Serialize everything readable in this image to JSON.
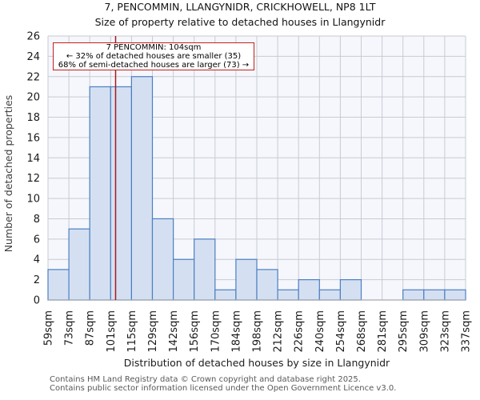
{
  "header": {
    "title": "7, PENCOMMIN, LLANGYNIDR, CRICKHOWELL, NP8 1LT",
    "subtitle": "Size of property relative to detached houses in Llangynidr"
  },
  "annotation": {
    "line1": "7 PENCOMMIN: 104sqm",
    "line2": "← 32% of detached houses are smaller (35)",
    "line3": "68% of semi-detached houses are larger (73) →"
  },
  "chart_data": {
    "type": "bar",
    "title": "7, PENCOMMIN, LLANGYNIDR, CRICKHOWELL, NP8 1LT",
    "subtitle": "Size of property relative to detached houses in Llangynidr",
    "xlabel": "Distribution of detached houses by size in Llangynidr",
    "ylabel": "Number of detached properties",
    "categories": [
      "59sqm",
      "73sqm",
      "87sqm",
      "101sqm",
      "115sqm",
      "129sqm",
      "142sqm",
      "156sqm",
      "170sqm",
      "184sqm",
      "198sqm",
      "212sqm",
      "226sqm",
      "240sqm",
      "254sqm",
      "268sqm",
      "281sqm",
      "295sqm",
      "309sqm",
      "323sqm",
      "337sqm"
    ],
    "bin_edges_sqm": [
      59,
      73,
      87,
      101,
      115,
      129,
      142,
      156,
      170,
      184,
      198,
      212,
      226,
      240,
      254,
      268,
      281,
      295,
      309,
      323,
      337
    ],
    "values": [
      3,
      7,
      21,
      21,
      22,
      8,
      4,
      6,
      1,
      4,
      3,
      1,
      2,
      1,
      2,
      0,
      0,
      1,
      1,
      1
    ],
    "ylim": [
      0,
      26
    ],
    "y_ticks": [
      0,
      2,
      4,
      6,
      8,
      10,
      12,
      14,
      16,
      18,
      20,
      22,
      24,
      26
    ],
    "grid": true,
    "legend": "none",
    "marker": {
      "label": "7 PENCOMMIN",
      "value_sqm": 104,
      "sqm_range": [
        59,
        337
      ]
    }
  },
  "footer": {
    "line1": "Contains HM Land Registry data © Crown copyright and database right 2025.",
    "line2": "Contains public sector information licensed under the Open Government Licence v3.0."
  },
  "colors": {
    "bar_fill": "#d4e0f2",
    "bar_stroke": "#4d7fc1",
    "marker_line": "#a81a1a",
    "annotation_border": "#c41f1f",
    "grid": "#c8cbd2",
    "axis_line": "#a6a9af",
    "plot_bg": "#f5f7fc",
    "tick_text": "#1a1a1a",
    "footer_text": "#58585a"
  }
}
